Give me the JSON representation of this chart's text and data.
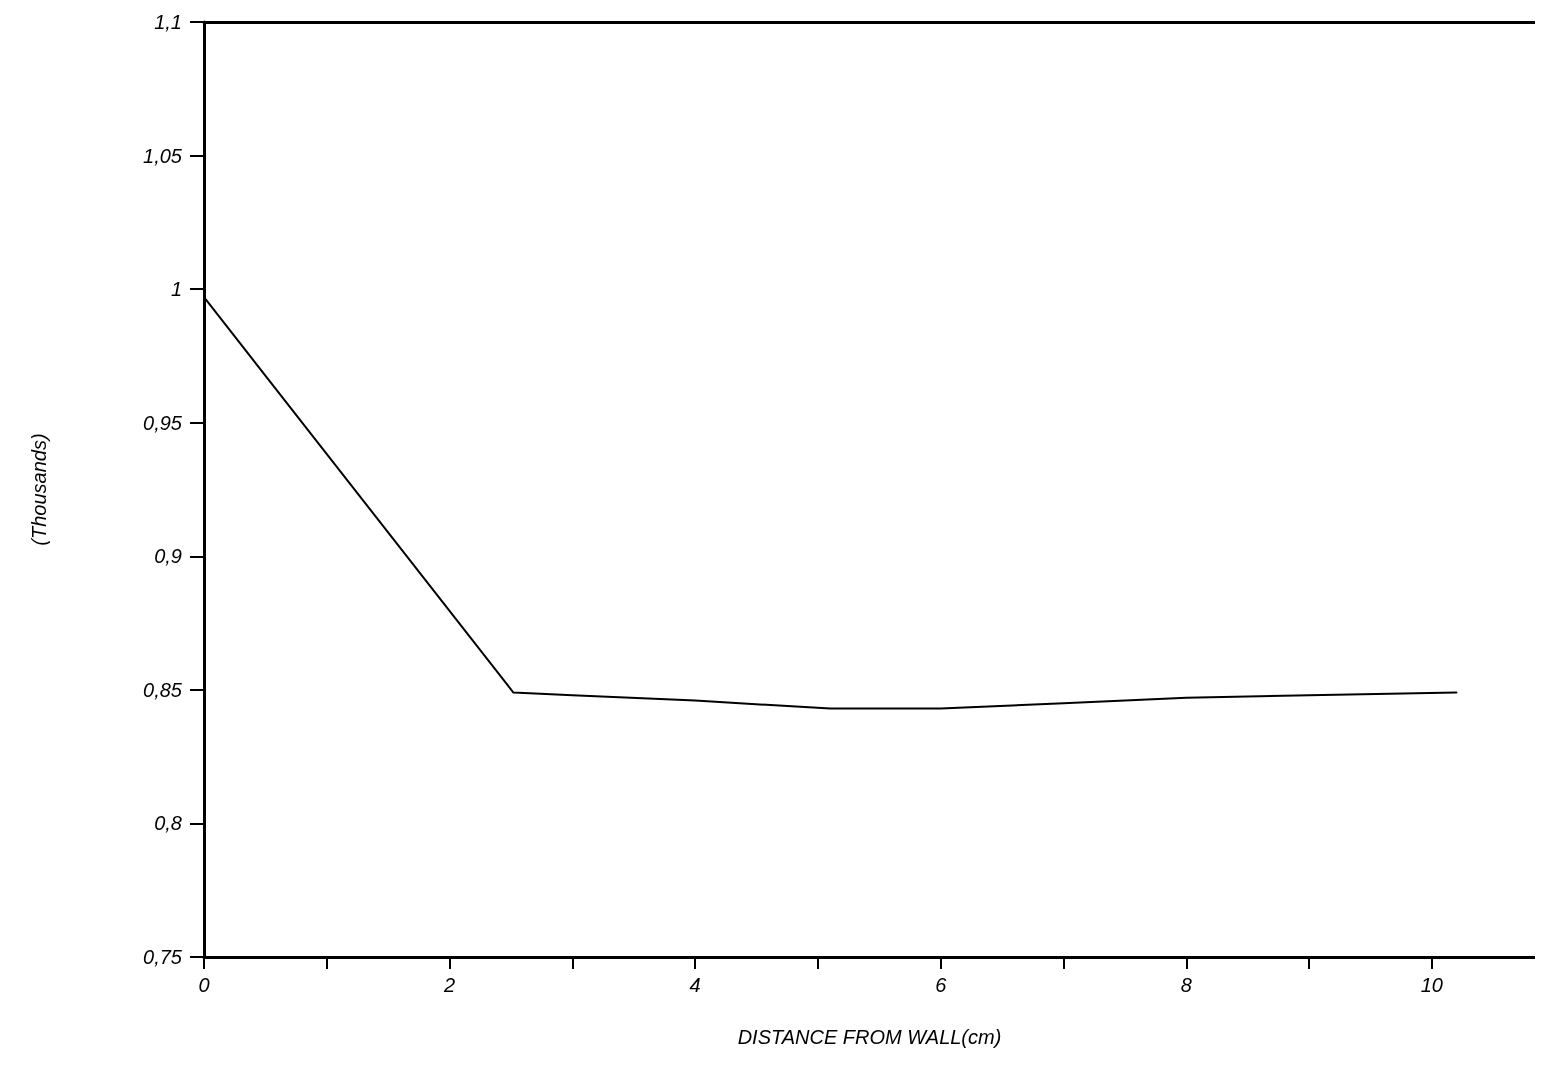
{
  "chart_data": {
    "type": "line",
    "xlabel": "DISTANCE FROM WALL(cm)",
    "ylabel": "(Thousands)",
    "x": [
      0,
      2.52,
      3,
      4,
      5.1,
      6,
      7,
      8,
      9,
      10.2
    ],
    "series": [
      {
        "color": "#000000",
        "values": [
          0.997,
          0.849,
          0.848,
          0.846,
          0.843,
          0.843,
          0.845,
          0.847,
          0.848,
          0.849
        ]
      }
    ],
    "xlim": [
      0,
      10.84
    ],
    "xticks": [
      0,
      {
        "value": 1,
        "label": null
      },
      2,
      {
        "value": 3,
        "label": null
      },
      4,
      {
        "value": 5,
        "label": null
      },
      6,
      {
        "value": 7,
        "label": null
      },
      8,
      {
        "value": 9,
        "label": null
      },
      10
    ],
    "ylim": [
      0.75,
      1.1
    ],
    "yticks": [
      {
        "value": 0.75,
        "label": "0,75"
      },
      {
        "value": 0.8,
        "label": "0,8"
      },
      {
        "value": 0.85,
        "label": "0,85"
      },
      {
        "value": 0.9,
        "label": "0,9"
      },
      {
        "value": 0.95,
        "label": "0,95"
      },
      {
        "value": 1,
        "label": "1"
      },
      {
        "value": 1.05,
        "label": "1,05"
      },
      {
        "value": 1.1,
        "label": "1,1"
      }
    ],
    "grid": false,
    "marker": "none",
    "line_style": "solid"
  }
}
